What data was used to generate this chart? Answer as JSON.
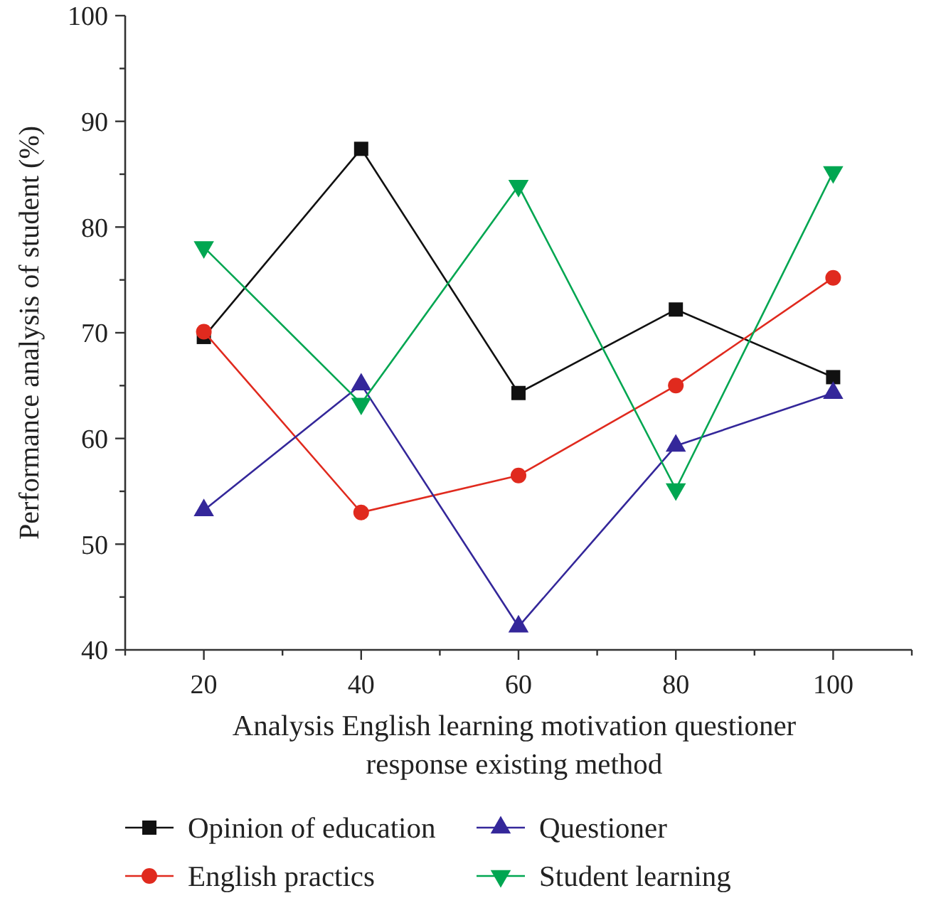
{
  "chart_data": {
    "type": "line",
    "xlabel": "Analysis English learning motivation questioner response existing method",
    "ylabel": "Performance analysis of student (%)",
    "x": [
      20,
      40,
      60,
      80,
      100
    ],
    "xlim": [
      10,
      110
    ],
    "xticks": [
      {
        "value": 10,
        "label": null
      },
      20,
      {
        "value": 30,
        "label": null
      },
      40,
      {
        "value": 50,
        "label": null
      },
      60,
      {
        "value": 70,
        "label": null
      },
      80,
      {
        "value": 90,
        "label": null
      },
      100,
      {
        "value": 110,
        "label": null
      }
    ],
    "ylim": [
      40,
      100
    ],
    "yticks": [
      40,
      {
        "value": 45,
        "label": null
      },
      50,
      {
        "value": 55,
        "label": null
      },
      60,
      {
        "value": 65,
        "label": null
      },
      70,
      {
        "value": 75,
        "label": null
      },
      80,
      {
        "value": 85,
        "label": null
      },
      90,
      {
        "value": 95,
        "label": null
      },
      100
    ],
    "legend": "bottom",
    "line_style": "solid",
    "series": [
      {
        "name": "Opinion of education",
        "color": "#111111",
        "marker": "square",
        "values": [
          69.6,
          87.4,
          64.3,
          72.2,
          65.8
        ]
      },
      {
        "name": "English practics",
        "color": "#e02a1e",
        "marker": "circle",
        "values": [
          70.1,
          53.0,
          56.5,
          65.0,
          75.2
        ]
      },
      {
        "name": "Questioner",
        "color": "#34279a",
        "marker": "triangle",
        "values": [
          53.2,
          65.1,
          42.2,
          59.3,
          64.3
        ]
      },
      {
        "name": "Student learning",
        "color": "#00a651",
        "marker": "triangle-down",
        "values": [
          78.1,
          63.3,
          83.9,
          55.2,
          85.2
        ]
      }
    ]
  }
}
